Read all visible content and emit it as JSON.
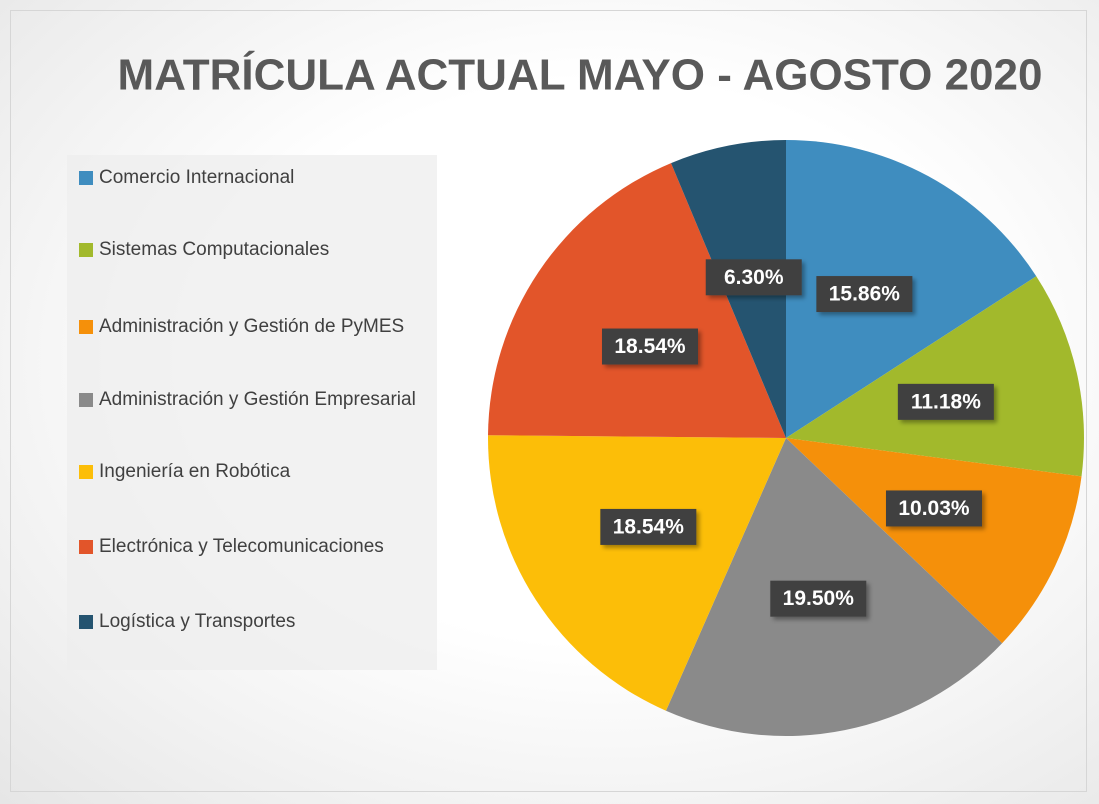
{
  "chart_data": {
    "type": "pie",
    "title": "MATRÍCULA ACTUAL MAYO - AGOSTO 2020",
    "categories": [
      "Comercio Internacional",
      "Sistemas Computacionales",
      "Administración y Gestión de PyMES",
      "Administración y Gestión Empresarial",
      "Ingeniería en Robótica",
      "Electrónica y Telecomunicaciones",
      "Logística y Transportes"
    ],
    "values": [
      15.86,
      11.18,
      10.03,
      19.5,
      18.54,
      18.54,
      6.3
    ],
    "value_labels": [
      "15.86%",
      "11.18%",
      "10.03%",
      "19.50%",
      "18.54%",
      "18.54%",
      "6.30%"
    ],
    "colors": [
      "#3f8dbf",
      "#a2b92c",
      "#f5900a",
      "#8a8a8a",
      "#fcbe08",
      "#e2552a",
      "#255470"
    ],
    "legend": "left"
  }
}
